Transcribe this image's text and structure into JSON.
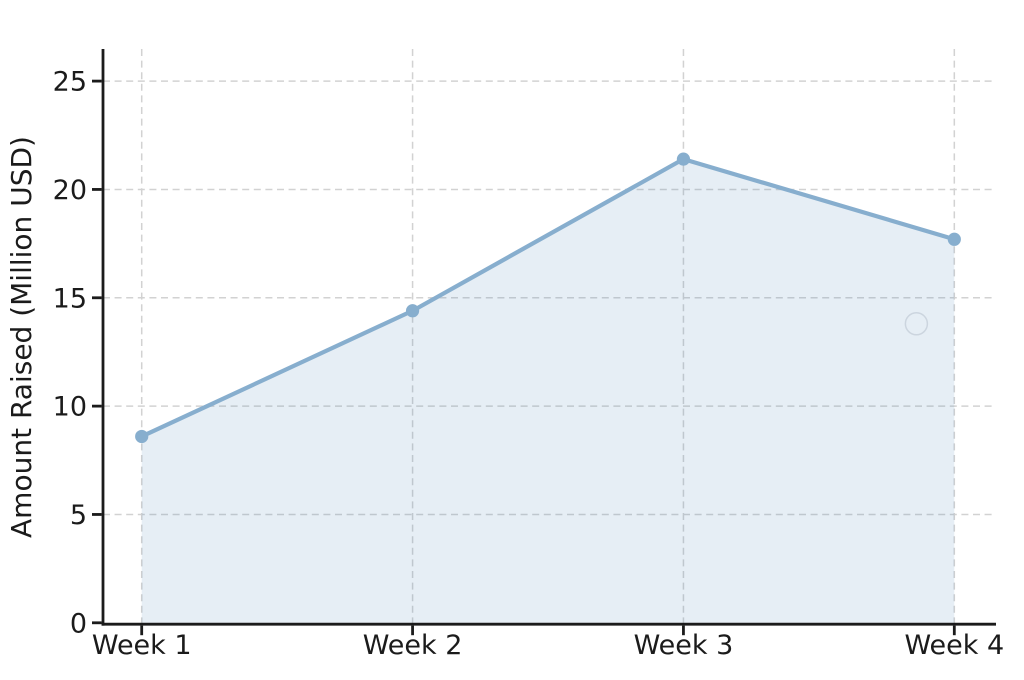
{
  "figure": {
    "title": "",
    "background_color": "#ffffff"
  },
  "chart_data": {
    "type": "area",
    "categories": [
      "Week 1",
      "Week 2",
      "Week 3",
      "Week 4"
    ],
    "series": [
      {
        "name": "Amount Raised",
        "values": [
          8.6,
          14.4,
          21.4,
          17.7
        ]
      }
    ],
    "title": "",
    "xlabel": "",
    "ylabel": "Amount Raised (Million USD)",
    "ylim": [
      0,
      26.5
    ],
    "yticks": [
      0,
      5,
      10,
      15,
      20,
      25
    ],
    "ytick_labels": [
      "0",
      "5",
      "10",
      "15",
      "20",
      "25"
    ],
    "grid": true,
    "grid_style": "dashed",
    "legend": "none",
    "marker": "circle",
    "colors": {
      "line": "#87AECE",
      "marker_fill": "#87AECE",
      "area_fill": "#4682B4",
      "area_fill_opacity": 0.135,
      "grid": "#d2d2d2",
      "spine": "#1b1b1b",
      "text": "#1b1b1b",
      "ghost_marker_stroke": "#ccd5df"
    },
    "annotations": [
      {
        "type": "open-circle-marker",
        "x_week": 3.86,
        "y_value": 13.8
      }
    ]
  }
}
